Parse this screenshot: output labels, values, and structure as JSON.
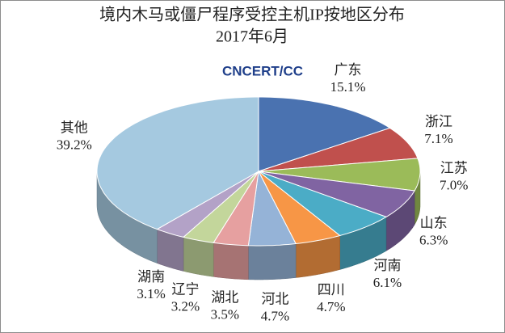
{
  "chart_data": {
    "type": "pie",
    "title": "境内木马或僵尸程序受控主机IP按地区分布",
    "subtitle": "2017年6月",
    "logo": "CNCERT/CC",
    "categories": [
      "广东",
      "浙江",
      "江苏",
      "山东",
      "河南",
      "四川",
      "河北",
      "湖北",
      "辽宁",
      "湖南",
      "其他"
    ],
    "values": [
      15.1,
      7.1,
      7.0,
      6.3,
      6.1,
      4.7,
      4.7,
      3.5,
      3.2,
      3.1,
      39.2
    ],
    "value_labels": [
      "15.1%",
      "7.1%",
      "7.0%",
      "6.3%",
      "6.1%",
      "4.7%",
      "4.7%",
      "3.5%",
      "3.2%",
      "3.1%",
      "39.2%"
    ],
    "colors": [
      "#4a72b0",
      "#c0504d",
      "#9bbb59",
      "#8064a2",
      "#4bacc6",
      "#f79646",
      "#95b3d7",
      "#e6a0a0",
      "#c3d69b",
      "#b3a2c7",
      "#a5c9e0"
    ]
  }
}
